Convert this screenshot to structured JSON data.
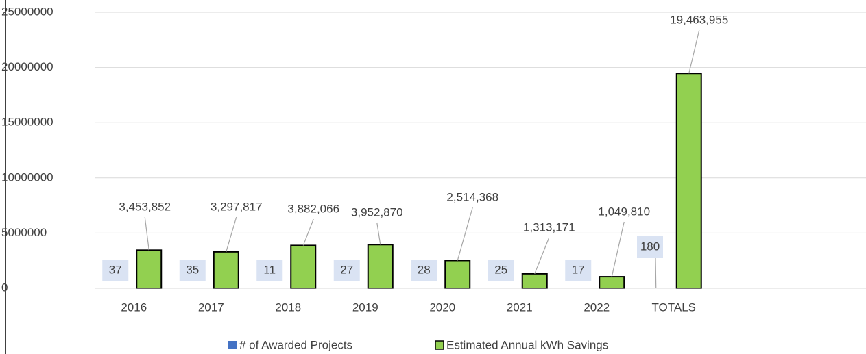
{
  "chart_data": {
    "type": "bar",
    "categories": [
      "2016",
      "2017",
      "2018",
      "2019",
      "2020",
      "2021",
      "2022",
      "TOTALS",
      null,
      null
    ],
    "series": [
      {
        "name": "# of Awarded Projects",
        "color": "#4472c4",
        "values": [
          37,
          35,
          11,
          27,
          28,
          25,
          17,
          180,
          null,
          null
        ]
      },
      {
        "name": "Estimated Annual kWh Savings",
        "color": "#92d050",
        "values": [
          3453852,
          3297817,
          3882066,
          3952870,
          2514368,
          1313171,
          1049810,
          19463955,
          null,
          null
        ],
        "value_labels": [
          "3,453,852",
          "3,297,817",
          "3,882,066",
          "3,952,870",
          "2,514,368",
          "1,313,171",
          "1,049,810",
          "19,463,955",
          null,
          null
        ]
      }
    ],
    "ylim": [
      0,
      25000000
    ],
    "yticks": [
      0,
      5000000,
      10000000,
      15000000,
      20000000,
      25000000
    ],
    "grid": true,
    "legend": "bottom"
  }
}
